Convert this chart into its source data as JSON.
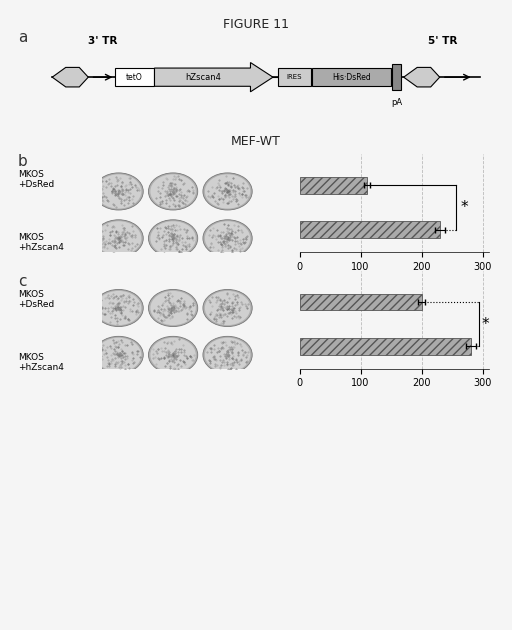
{
  "title": "FIGURE 11",
  "panel_a_label": "a",
  "panel_b_label": "b",
  "panel_c_label": "c",
  "diagram_elements": {
    "left_tr": "3' TR",
    "right_tr": "5' TR",
    "teto": "tetO",
    "hzscan4": "hZscan4",
    "ires": "IRES",
    "hidsred": "His·DsRed",
    "pa": "pA"
  },
  "mef_wt_title": "MEF-WT",
  "panel_b": {
    "values": [
      110,
      230
    ],
    "errors": [
      5,
      8
    ],
    "xticks": [
      0,
      100,
      200,
      300
    ],
    "significance": "*"
  },
  "panel_c": {
    "values": [
      200,
      280
    ],
    "errors": [
      6,
      8
    ],
    "xticks": [
      0,
      100,
      200,
      300
    ],
    "significance": "*"
  },
  "bar_color": "#aaaaaa",
  "bar_hatch": "////",
  "bg_color": "#f5f5f5",
  "grid_color": "#bbbbbb",
  "label_texts": [
    "MKOS\n+DsRed",
    "MKOS\n+hZscan4"
  ]
}
